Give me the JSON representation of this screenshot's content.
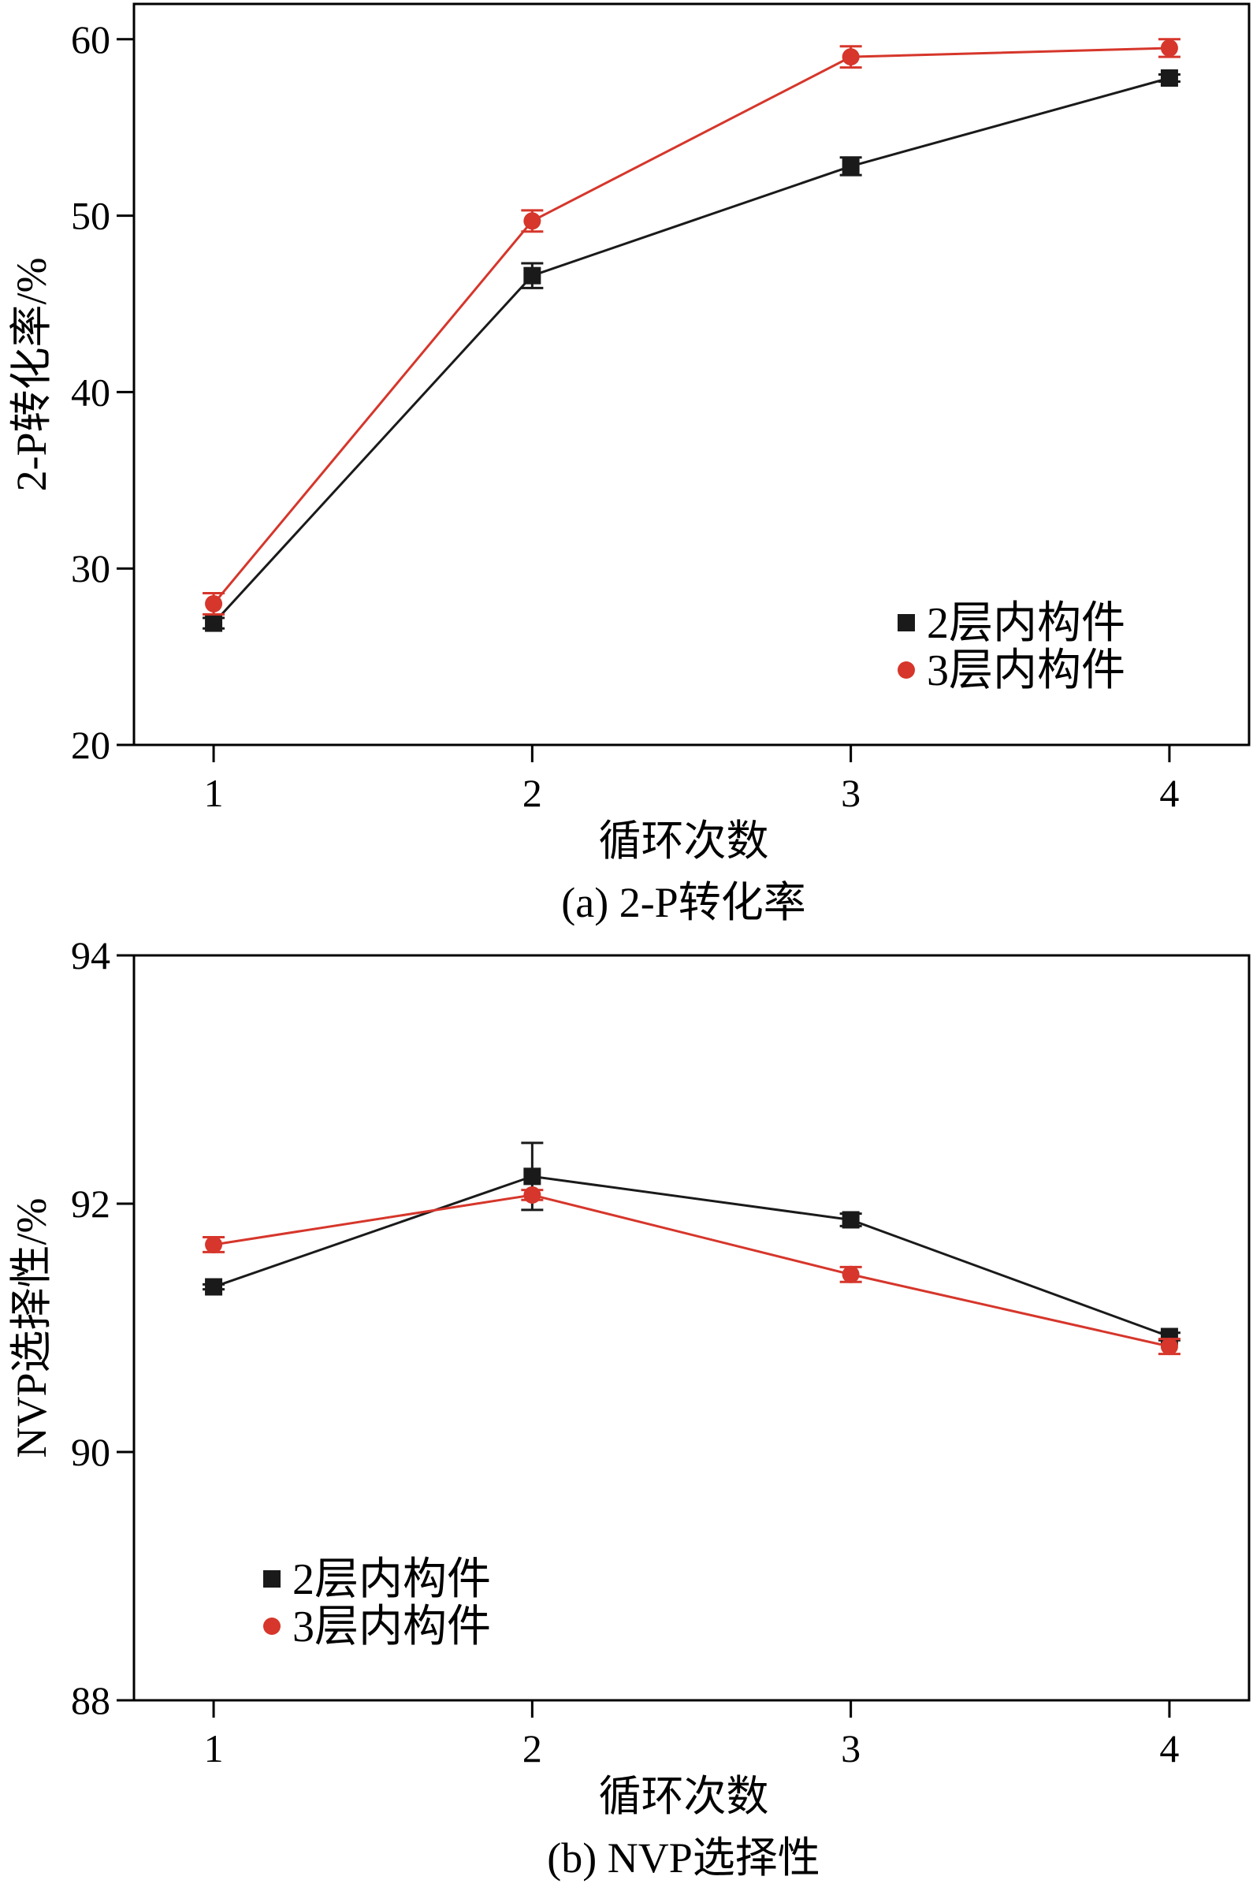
{
  "chart_data": [
    {
      "type": "line",
      "caption": "(a) 2-P转化率",
      "xlabel": "循环次数",
      "ylabel": "2-P转化率/%",
      "x": [
        1,
        2,
        3,
        4
      ],
      "xlim": [
        0.75,
        4.25
      ],
      "ylim": [
        20,
        62
      ],
      "xticks": [
        1,
        2,
        3,
        4
      ],
      "yticks": [
        20,
        30,
        40,
        50,
        60
      ],
      "grid": false,
      "legend_position": "bottom-right",
      "series": [
        {
          "name": "2层内构件",
          "marker": "square",
          "color": "#1a1a1a",
          "values": [
            26.9,
            46.6,
            52.8,
            57.8
          ],
          "errors": [
            0.3,
            0.7,
            0.5,
            0.2
          ]
        },
        {
          "name": "3层内构件",
          "marker": "circle",
          "color": "#d6362b",
          "values": [
            28.0,
            49.7,
            59.0,
            59.5
          ],
          "errors": [
            0.6,
            0.6,
            0.6,
            0.5
          ]
        }
      ]
    },
    {
      "type": "line",
      "caption": "(b) NVP选择性",
      "xlabel": "循环次数",
      "ylabel": "NVP选择性/%",
      "x": [
        1,
        2,
        3,
        4
      ],
      "xlim": [
        0.75,
        4.25
      ],
      "ylim": [
        88,
        94
      ],
      "xticks": [
        1,
        2,
        3,
        4
      ],
      "yticks": [
        88,
        90,
        92,
        94
      ],
      "grid": false,
      "legend_position": "bottom-left",
      "series": [
        {
          "name": "2层内构件",
          "marker": "square",
          "color": "#1a1a1a",
          "values": [
            91.33,
            92.22,
            91.87,
            90.93
          ],
          "errors": [
            0.02,
            0.27,
            0.05,
            0.03
          ]
        },
        {
          "name": "3层内构件",
          "marker": "circle",
          "color": "#d6362b",
          "values": [
            91.67,
            92.07,
            91.43,
            90.85
          ],
          "errors": [
            0.06,
            0.04,
            0.06,
            0.06
          ]
        }
      ]
    }
  ]
}
